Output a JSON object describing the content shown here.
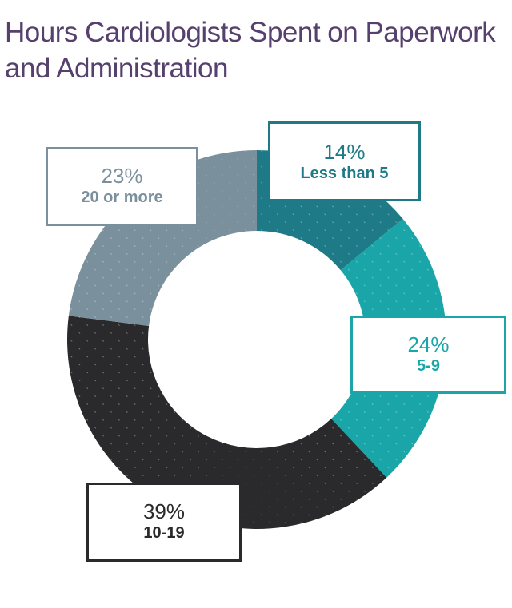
{
  "chart_data": {
    "type": "pie",
    "title": "Hours Cardiologists Spent on Paperwork and Administration",
    "slices": [
      {
        "label": "Less than 5",
        "value": 14,
        "value_label": "14%",
        "color": "#1e7a86"
      },
      {
        "label": "5-9",
        "value": 24,
        "value_label": "24%",
        "color": "#1aa6a8"
      },
      {
        "label": "10-19",
        "value": 39,
        "value_label": "39%",
        "color": "#2a2a2c"
      },
      {
        "label": "20 or more",
        "value": 23,
        "value_label": "23%",
        "color": "#7a909c"
      }
    ],
    "hole": true,
    "legend": "none"
  }
}
